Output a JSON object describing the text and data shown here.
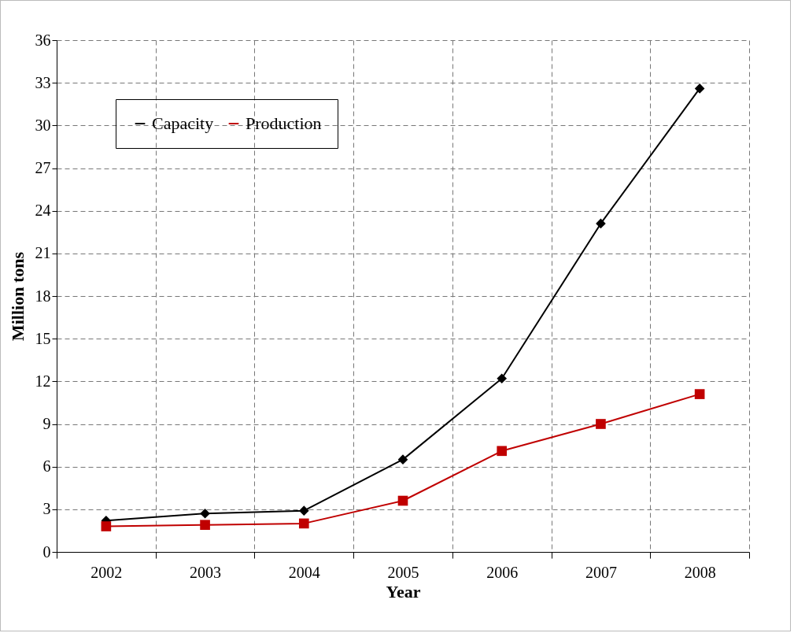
{
  "chart_data": {
    "type": "line",
    "xlabel": "Year",
    "ylabel": "Million tons",
    "categories": [
      "2002",
      "2003",
      "2004",
      "2005",
      "2006",
      "2007",
      "2008"
    ],
    "series": [
      {
        "name": "Capacity",
        "color": "#000000",
        "marker": "diamond",
        "values": [
          2.2,
          2.7,
          2.9,
          6.5,
          12.2,
          23.1,
          32.6
        ]
      },
      {
        "name": "Production",
        "color": "#c00000",
        "marker": "square",
        "values": [
          1.8,
          1.9,
          2.0,
          3.6,
          7.1,
          9.0,
          11.1
        ]
      }
    ],
    "ylim": [
      0,
      36
    ],
    "yticks": [
      0,
      3,
      6,
      9,
      12,
      15,
      18,
      21,
      24,
      27,
      30,
      33,
      36
    ],
    "grid": true,
    "legend": "top left",
    "line_style": "solid"
  }
}
